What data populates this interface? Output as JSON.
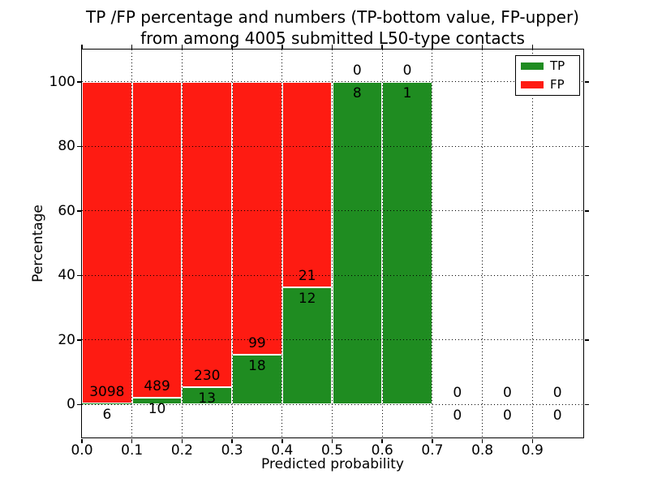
{
  "chart_data": {
    "type": "bar",
    "stacked": true,
    "title": "TP /FP percentage and numbers (TP-bottom value, FP-upper) from among 4005 submitted L50-type contacts",
    "title_lines": [
      "TP /FP percentage and numbers (TP-bottom value, FP-upper)",
      "from among 4005 submitted L50-type contacts"
    ],
    "xlabel": "Predicted probability",
    "ylabel": "Percentage",
    "xlim": [
      0.0,
      1.0
    ],
    "ylim": [
      -10,
      110
    ],
    "xticks": [
      0.0,
      0.1,
      0.2,
      0.3,
      0.4,
      0.5,
      0.6,
      0.7,
      0.8,
      0.9
    ],
    "xtick_labels": [
      "0.0",
      "0.1",
      "0.2",
      "0.3",
      "0.4",
      "0.5",
      "0.6",
      "0.7",
      "0.8",
      "0.9"
    ],
    "yticks": [
      0,
      20,
      40,
      60,
      80,
      100
    ],
    "ytick_labels": [
      "0",
      "20",
      "40",
      "60",
      "80",
      "100"
    ],
    "grid": {
      "style": "dotted",
      "color": "#000000",
      "on": true
    },
    "total_contacts": 4005,
    "label_convention": "FP count above TP/FP boundary, TP count below boundary",
    "bar_edge_color": "#ffffff",
    "legend": {
      "position": "upper-right",
      "entries": [
        {
          "name": "TP",
          "label": "TP",
          "color": "#1f8c21"
        },
        {
          "name": "FP",
          "label": "FP",
          "color": "#fe1b12"
        }
      ]
    },
    "bins": [
      {
        "range": [
          0.0,
          0.1
        ],
        "tp": 6,
        "fp": 3098,
        "tp_pct": 0.19,
        "fp_pct": 99.81
      },
      {
        "range": [
          0.1,
          0.2
        ],
        "tp": 10,
        "fp": 489,
        "tp_pct": 2.0,
        "fp_pct": 98.0
      },
      {
        "range": [
          0.2,
          0.3
        ],
        "tp": 13,
        "fp": 230,
        "tp_pct": 5.35,
        "fp_pct": 94.65
      },
      {
        "range": [
          0.3,
          0.4
        ],
        "tp": 18,
        "fp": 99,
        "tp_pct": 15.38,
        "fp_pct": 84.62
      },
      {
        "range": [
          0.4,
          0.5
        ],
        "tp": 12,
        "fp": 21,
        "tp_pct": 36.36,
        "fp_pct": 63.64
      },
      {
        "range": [
          0.5,
          0.6
        ],
        "tp": 8,
        "fp": 0,
        "tp_pct": 100.0,
        "fp_pct": 0.0
      },
      {
        "range": [
          0.6,
          0.7
        ],
        "tp": 1,
        "fp": 0,
        "tp_pct": 100.0,
        "fp_pct": 0.0
      },
      {
        "range": [
          0.7,
          0.8
        ],
        "tp": 0,
        "fp": 0,
        "tp_pct": 0.0,
        "fp_pct": 0.0
      },
      {
        "range": [
          0.8,
          0.9
        ],
        "tp": 0,
        "fp": 0,
        "tp_pct": 0.0,
        "fp_pct": 0.0
      },
      {
        "range": [
          0.9,
          1.0
        ],
        "tp": 0,
        "fp": 0,
        "tp_pct": 0.0,
        "fp_pct": 0.0
      }
    ]
  }
}
